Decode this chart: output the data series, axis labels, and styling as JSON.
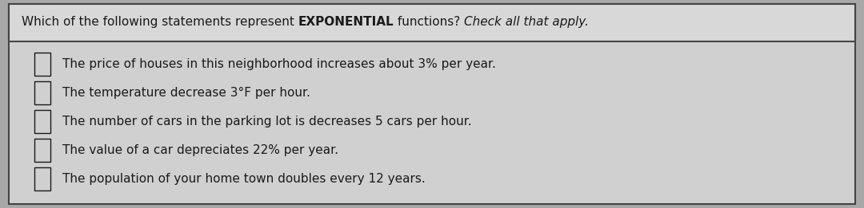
{
  "title_part1": "Which of the following statements represent ",
  "title_part2": "EXPONENTIAL",
  "title_part3": " functions? ",
  "title_part4": "Check all that apply.",
  "options": [
    "The price of houses in this neighborhood increases about 3% per year.",
    "The temperature decrease 3°F per hour.",
    "The number of cars in the parking lot is decreases 5 cars per hour.",
    "The value of a car depreciates 22% per year.",
    "The population of your home town doubles every 12 years."
  ],
  "bg_color": "#a8a8a8",
  "box_color": "#d0d0d0",
  "header_color": "#d8d8d8",
  "text_color": "#1a1a1a",
  "border_color": "#444444",
  "font_size": 11,
  "title_font_size": 11
}
